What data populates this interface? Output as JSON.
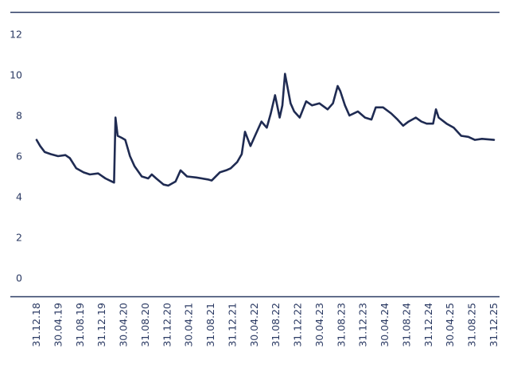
{
  "chart_data": {
    "type": "line",
    "title": "",
    "xlabel": "",
    "ylabel": "",
    "ylim": [
      0,
      12
    ],
    "yticks": [
      0,
      2,
      4,
      6,
      8,
      10,
      12
    ],
    "xlim": [
      "2018-12-31",
      "2025-12-31"
    ],
    "xtick_labels": [
      "31.12.18",
      "30.04.19",
      "31.08.19",
      "31.12.19",
      "30.04.20",
      "31.08.20",
      "31.12.20",
      "30.04.21",
      "31.08.21",
      "31.12.21",
      "30.04.22",
      "31.08.22",
      "31.12.22",
      "30.04.23",
      "31.08.23",
      "31.12.23",
      "30.04.24",
      "31.08.24",
      "31.12.24",
      "30.04.25",
      "31.08.25",
      "31.12.25"
    ],
    "grid": false,
    "legend": "none",
    "colors": {
      "line": "#1f2b52",
      "axis": "#2b3a63",
      "frame": "#2b3a63"
    },
    "series": [
      {
        "x": [
          "2018-12-31",
          "2019-01-20",
          "2019-02-15",
          "2019-03-20",
          "2019-04-30",
          "2019-06-10",
          "2019-07-05",
          "2019-08-10",
          "2019-09-20",
          "2019-10-25",
          "2019-12-10",
          "2020-01-20",
          "2020-02-25",
          "2020-03-08",
          "2020-03-16",
          "2020-03-28",
          "2020-04-20",
          "2020-05-10",
          "2020-06-05",
          "2020-07-01",
          "2020-08-10",
          "2020-09-15",
          "2020-10-05",
          "2020-10-30",
          "2020-12-10",
          "2021-01-05",
          "2021-02-15",
          "2021-03-15",
          "2021-04-20",
          "2021-06-10",
          "2021-08-15",
          "2021-09-05",
          "2021-10-20",
          "2021-11-25",
          "2021-12-20",
          "2022-01-25",
          "2022-02-20",
          "2022-03-10",
          "2022-04-10",
          "2022-05-05",
          "2022-06-10",
          "2022-07-10",
          "2022-08-01",
          "2022-08-25",
          "2022-09-20",
          "2022-10-05",
          "2022-10-20",
          "2022-11-20",
          "2022-12-10",
          "2023-01-10",
          "2023-02-15",
          "2023-03-20",
          "2023-04-30",
          "2023-06-15",
          "2023-07-15",
          "2023-08-10",
          "2023-08-25",
          "2023-09-20",
          "2023-10-15",
          "2023-12-01",
          "2024-01-10",
          "2024-02-15",
          "2024-03-10",
          "2024-04-20",
          "2024-06-05",
          "2024-07-10",
          "2024-08-10",
          "2024-09-10",
          "2024-10-20",
          "2024-11-20",
          "2024-12-20",
          "2025-01-25",
          "2025-02-10",
          "2025-02-25",
          "2025-04-10",
          "2025-05-20",
          "2025-07-01",
          "2025-08-10",
          "2025-09-15",
          "2025-10-25",
          "2025-12-31"
        ],
        "y": [
          6.8,
          6.5,
          6.2,
          6.1,
          6.0,
          6.05,
          5.9,
          5.4,
          5.2,
          5.1,
          5.15,
          4.9,
          4.75,
          4.7,
          7.9,
          7.0,
          6.9,
          6.8,
          6.0,
          5.5,
          5.0,
          4.9,
          5.1,
          4.9,
          4.6,
          4.55,
          4.75,
          5.3,
          5.0,
          4.95,
          4.85,
          4.8,
          5.2,
          5.3,
          5.4,
          5.7,
          6.1,
          7.2,
          6.5,
          7.0,
          7.7,
          7.4,
          8.1,
          9.0,
          7.9,
          8.5,
          10.05,
          8.6,
          8.2,
          7.9,
          8.7,
          8.5,
          8.6,
          8.3,
          8.6,
          9.45,
          9.2,
          8.5,
          8.0,
          8.2,
          7.9,
          7.8,
          8.4,
          8.4,
          8.1,
          7.8,
          7.5,
          7.7,
          7.9,
          7.7,
          7.6,
          7.6,
          8.3,
          7.9,
          7.6,
          7.4,
          7.0,
          6.95,
          6.8,
          6.85,
          6.8
        ]
      }
    ]
  }
}
